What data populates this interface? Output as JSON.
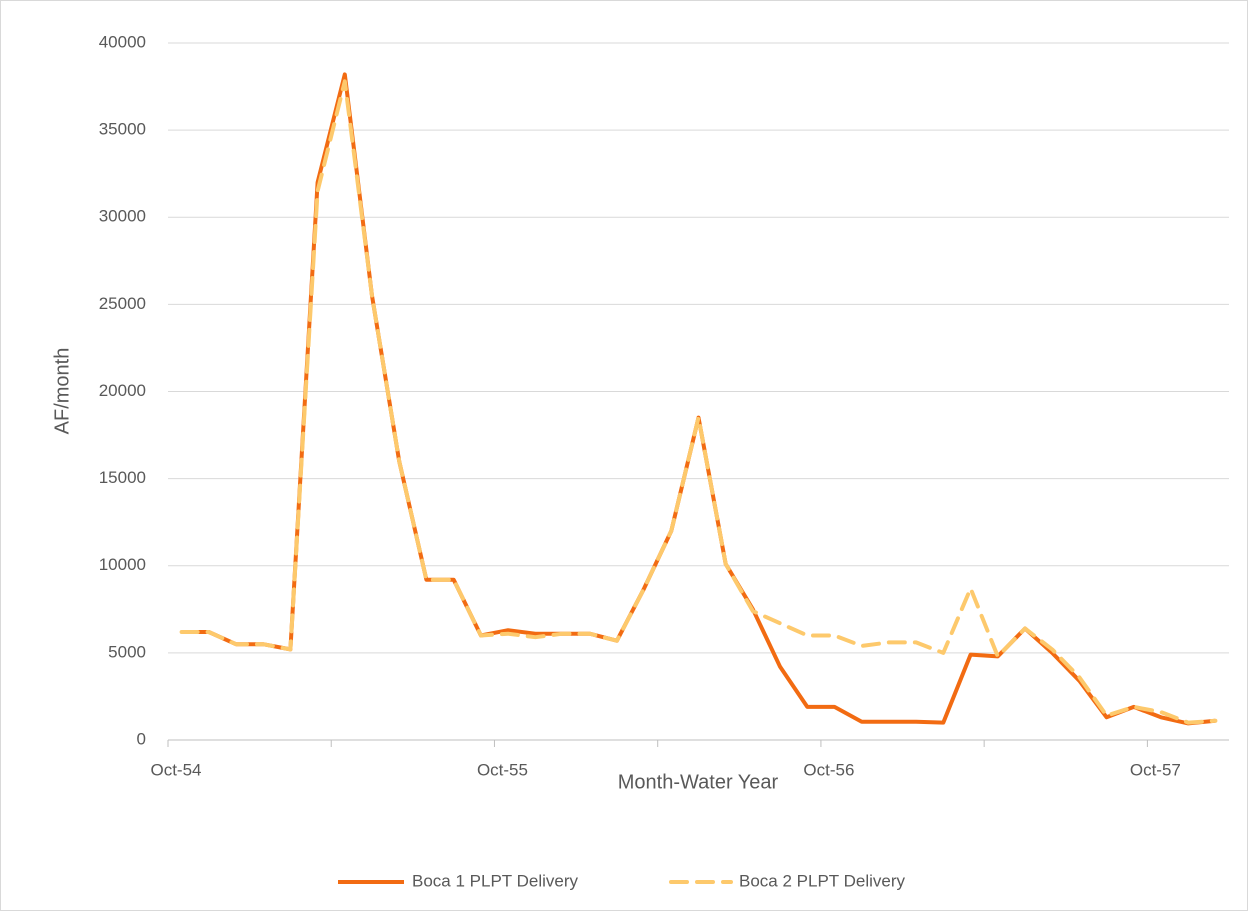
{
  "chart_data": {
    "type": "line",
    "x_label": "Month-Water Year",
    "y_label": "AF/month",
    "categories": [
      "Oct-54",
      null,
      null,
      null,
      null,
      null,
      null,
      null,
      null,
      null,
      null,
      null,
      "Oct-55",
      null,
      null,
      null,
      null,
      null,
      null,
      null,
      null,
      null,
      null,
      null,
      "Oct-56",
      null,
      null,
      null,
      null,
      null,
      null,
      null,
      null,
      null,
      null,
      null,
      "Oct-57",
      null,
      null
    ],
    "series": [
      {
        "name": "Boca 1 PLPT Delivery",
        "color": "#f26b12",
        "dashed": false,
        "values": [
          6200,
          6200,
          5500,
          5500,
          5200,
          32000,
          38200,
          25500,
          16000,
          9200,
          9200,
          6000,
          6300,
          6100,
          6100,
          6100,
          5700,
          8700,
          12000,
          18500,
          10100,
          7500,
          4200,
          1900,
          1900,
          1050,
          1050,
          1050,
          1000,
          4900,
          4800,
          6400,
          5000,
          3400,
          1300,
          1900,
          1300,
          950,
          1100
        ]
      },
      {
        "name": "Boca 2 PLPT Delivery",
        "color": "#fdc96c",
        "dashed": true,
        "values": [
          6200,
          6200,
          5500,
          5500,
          5200,
          31500,
          37800,
          25500,
          16000,
          9200,
          9200,
          6000,
          6100,
          5900,
          6100,
          6100,
          5700,
          8700,
          12000,
          18500,
          10100,
          7400,
          6700,
          6000,
          6000,
          5400,
          5600,
          5600,
          5000,
          8700,
          4800,
          6400,
          5200,
          3600,
          1400,
          1900,
          1600,
          1000,
          1100
        ]
      }
    ],
    "ylim": [
      0,
      40000
    ],
    "yticks": [
      0,
      5000,
      10000,
      15000,
      20000,
      25000,
      30000,
      35000,
      40000
    ],
    "grid": true,
    "legend": "bottom"
  }
}
